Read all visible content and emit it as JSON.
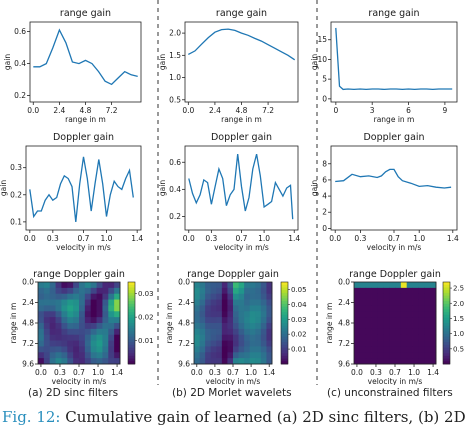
{
  "chart_data": [
    {
      "type": "line",
      "title": "range gain",
      "xlabel": "range in m",
      "ylabel": "gain",
      "xlim": [
        -0.3,
        9.9
      ],
      "ylim": [
        0.16,
        0.66
      ],
      "xticks": [
        "0.0",
        "2.4",
        "4.8",
        "7.2"
      ],
      "yticks": [
        "0.2",
        "0.4",
        "0.6"
      ],
      "x": [
        0,
        0.6,
        1.2,
        1.8,
        2.4,
        3.0,
        3.6,
        4.2,
        4.8,
        5.4,
        6.0,
        6.6,
        7.2,
        7.8,
        8.4,
        9.0,
        9.6
      ],
      "y": [
        0.38,
        0.38,
        0.4,
        0.5,
        0.61,
        0.53,
        0.41,
        0.4,
        0.42,
        0.4,
        0.35,
        0.29,
        0.27,
        0.31,
        0.35,
        0.33,
        0.32
      ]
    },
    {
      "type": "line",
      "title": "range gain",
      "xlabel": "range in m",
      "ylabel": "gain",
      "xlim": [
        -0.3,
        9.9
      ],
      "ylim": [
        0.45,
        2.25
      ],
      "xticks": [
        "0.0",
        "2.4",
        "4.8",
        "7.2"
      ],
      "yticks": [
        "0.5",
        "1.0",
        "1.5",
        "2.0"
      ],
      "x": [
        0,
        0.6,
        1.2,
        1.8,
        2.4,
        3.0,
        3.6,
        4.2,
        4.8,
        5.4,
        6.0,
        6.6,
        7.2,
        7.8,
        8.4,
        9.0,
        9.6
      ],
      "y": [
        1.52,
        1.6,
        1.75,
        1.9,
        2.02,
        2.08,
        2.09,
        2.06,
        2.0,
        1.95,
        1.88,
        1.82,
        1.74,
        1.66,
        1.58,
        1.5,
        1.4
      ]
    },
    {
      "type": "line",
      "title": "range gain",
      "xlabel": "range in m",
      "ylabel": "gain",
      "xlim": [
        -0.4,
        10.0
      ],
      "ylim": [
        -0.8,
        19.5
      ],
      "xticks": [
        "0",
        "3",
        "6",
        "9"
      ],
      "yticks": [
        "0",
        "5",
        "10",
        "15"
      ],
      "x": [
        0,
        0.3,
        0.6,
        1.0,
        1.5,
        2.0,
        2.5,
        3.0,
        3.5,
        4.0,
        4.5,
        5.0,
        5.5,
        6.0,
        6.5,
        7.0,
        7.5,
        8.0,
        8.5,
        9.0,
        9.6
      ],
      "y": [
        18,
        3.2,
        2.4,
        2.5,
        2.4,
        2.5,
        2.4,
        2.5,
        2.5,
        2.4,
        2.5,
        2.5,
        2.4,
        2.5,
        2.4,
        2.5,
        2.5,
        2.4,
        2.5,
        2.5,
        2.5
      ]
    },
    {
      "type": "line",
      "title": "Doppler gain",
      "xlabel": "velocity in m/s",
      "ylabel": "gain",
      "xlim": [
        -0.05,
        1.45
      ],
      "ylim": [
        0.07,
        0.38
      ],
      "xticks": [
        "0.0",
        "0.3",
        "0.7",
        "1.0",
        "1.4"
      ],
      "yticks": [
        "0.1",
        "0.2",
        "0.3"
      ],
      "x": [
        0,
        0.05,
        0.1,
        0.15,
        0.2,
        0.25,
        0.3,
        0.35,
        0.4,
        0.45,
        0.5,
        0.55,
        0.6,
        0.65,
        0.7,
        0.75,
        0.8,
        0.85,
        0.9,
        0.95,
        1.0,
        1.05,
        1.1,
        1.15,
        1.2,
        1.25,
        1.3,
        1.35
      ],
      "y": [
        0.22,
        0.12,
        0.14,
        0.14,
        0.18,
        0.2,
        0.18,
        0.19,
        0.24,
        0.27,
        0.26,
        0.23,
        0.1,
        0.24,
        0.34,
        0.26,
        0.14,
        0.24,
        0.33,
        0.24,
        0.12,
        0.2,
        0.25,
        0.23,
        0.22,
        0.26,
        0.29,
        0.19
      ]
    },
    {
      "type": "line",
      "title": "Doppler gain",
      "xlabel": "velocity in m/s",
      "ylabel": "gain",
      "xlim": [
        -0.05,
        1.45
      ],
      "ylim": [
        0.1,
        0.72
      ],
      "xticks": [
        "0.0",
        "0.3",
        "0.7",
        "1.0",
        "1.4"
      ],
      "yticks": [
        "0.2",
        "0.4",
        "0.6"
      ],
      "x": [
        0,
        0.05,
        0.1,
        0.15,
        0.2,
        0.25,
        0.3,
        0.35,
        0.4,
        0.45,
        0.5,
        0.55,
        0.6,
        0.65,
        0.7,
        0.75,
        0.8,
        0.85,
        0.9,
        0.95,
        1.0,
        1.05,
        1.1,
        1.15,
        1.2,
        1.25,
        1.3,
        1.35,
        1.38
      ],
      "y": [
        0.48,
        0.37,
        0.3,
        0.36,
        0.47,
        0.45,
        0.29,
        0.42,
        0.55,
        0.48,
        0.28,
        0.36,
        0.4,
        0.66,
        0.42,
        0.24,
        0.34,
        0.55,
        0.66,
        0.5,
        0.27,
        0.29,
        0.31,
        0.45,
        0.4,
        0.35,
        0.41,
        0.43,
        0.18
      ]
    },
    {
      "type": "line",
      "title": "Doppler gain",
      "xlabel": "velocity in m/s",
      "ylabel": "gain",
      "xlim": [
        -0.05,
        1.45
      ],
      "ylim": [
        -0.2,
        10.2
      ],
      "xticks": [
        "0.0",
        "0.3",
        "0.7",
        "1.0",
        "1.4"
      ],
      "yticks": [
        "0",
        "2",
        "4",
        "6",
        "8"
      ],
      "x": [
        0,
        0.1,
        0.2,
        0.3,
        0.4,
        0.5,
        0.55,
        0.6,
        0.65,
        0.7,
        0.75,
        0.8,
        0.9,
        1.0,
        1.1,
        1.2,
        1.3,
        1.38
      ],
      "y": [
        5.8,
        5.9,
        6.7,
        6.4,
        6.5,
        6.3,
        6.5,
        7.0,
        7.3,
        7.3,
        6.4,
        5.9,
        5.6,
        5.2,
        5.3,
        5.1,
        5.0,
        5.1
      ]
    },
    {
      "type": "heatmap",
      "title": "range Doppler gain",
      "xlabel": "velocity in m/s",
      "ylabel": "range in m",
      "xticks": [
        "0.0",
        "0.3",
        "0.7",
        "1.0",
        "1.4"
      ],
      "yticks": [
        "0.0",
        "2.4",
        "4.8",
        "7.2",
        "9.6"
      ],
      "colorbar_ticks": [
        "0.01",
        "0.02",
        "0.03"
      ],
      "cmin": 0.0,
      "cmax": 0.035
    },
    {
      "type": "heatmap",
      "title": "range Doppler gain",
      "xlabel": "velocity in m/s",
      "ylabel": "range in m",
      "xticks": [
        "0.0",
        "0.3",
        "0.7",
        "1.0",
        "1.4"
      ],
      "yticks": [
        "0.0",
        "2.4",
        "4.8",
        "7.2",
        "9.6"
      ],
      "colorbar_ticks": [
        "0.01",
        "0.02",
        "0.03",
        "0.04",
        "0.05"
      ],
      "cmin": 0.0,
      "cmax": 0.055
    },
    {
      "type": "heatmap",
      "title": "range Doppler gain",
      "xlabel": "velocity in m/s",
      "ylabel": "range in m",
      "xticks": [
        "0.0",
        "0.3",
        "0.7",
        "1.0",
        "1.4"
      ],
      "yticks": [
        "0.0",
        "2.4",
        "4.8",
        "7.2",
        "9.6"
      ],
      "colorbar_ticks": [
        "0.5",
        "1.0",
        "1.5",
        "2.0",
        "2.5"
      ],
      "cmin": 0.0,
      "cmax": 2.7
    }
  ],
  "line_color": "#1f77b4",
  "captions": [
    "(a) 2D sinc filters",
    "(b) 2D Morlet wavelets",
    "(c) unconstrained filters"
  ],
  "figure_caption": {
    "number": "Fig. 12:",
    "text": " Cumulative gain of learned (a) 2D sinc filters, (b) 2D"
  }
}
